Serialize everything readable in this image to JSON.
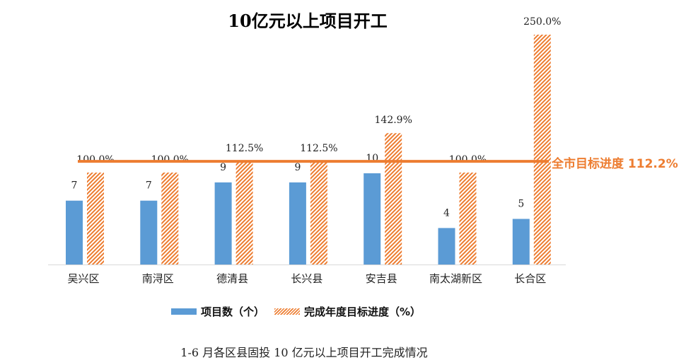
{
  "chart_data": {
    "type": "bar",
    "title": "10亿元以上项目开工",
    "caption": "1-6 月各区县固投 10 亿元以上项目开工完成情况",
    "categories": [
      "吴兴区",
      "南浔区",
      "德清县",
      "长兴县",
      "安吉县",
      "南太湖新区",
      "长合区"
    ],
    "series": [
      {
        "name": "项目数（个）",
        "values": [
          7,
          7,
          9,
          9,
          10,
          4,
          5
        ],
        "labels": [
          "7",
          "7",
          "9",
          "9",
          "10",
          "4",
          "5"
        ],
        "color": "#5b9bd5"
      },
      {
        "name": "完成年度目标进度（%）",
        "values": [
          100.0,
          100.0,
          112.5,
          112.5,
          142.9,
          100.0,
          250.0
        ],
        "labels": [
          "100.0%",
          "100.0%",
          "112.5%",
          "112.5%",
          "142.9%",
          "100.0%",
          "250.0%"
        ],
        "color": "#ed7d31",
        "pattern": "hatch"
      }
    ],
    "reference_line": {
      "value": 112.2,
      "label": "全市目标进度 112.2%",
      "color": "#ed7d31"
    },
    "legend": "bottom"
  }
}
